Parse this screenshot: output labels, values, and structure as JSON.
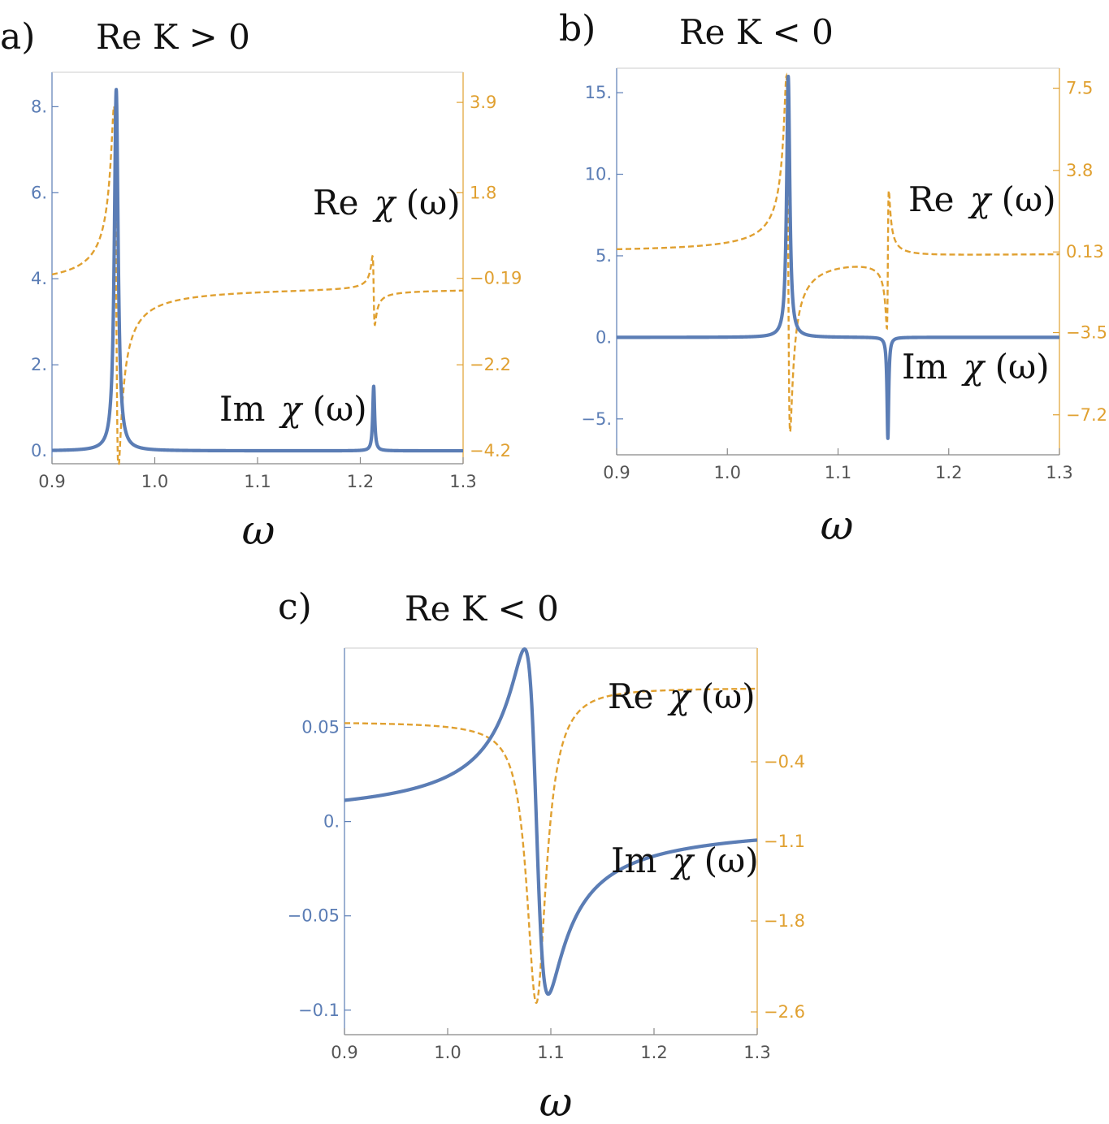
{
  "colors": {
    "im": "#5B7DB5",
    "re": "#E0A030",
    "axis_x": "#888888",
    "text": "#111111"
  },
  "chart_data": [
    {
      "id": "a",
      "type": "line",
      "panel_label": "a)",
      "title": "Re K > 0",
      "xlabel": "ω",
      "xlim": [
        0.9,
        1.3
      ],
      "ylim_left": [
        -0.3,
        8.8
      ],
      "ylim_right": [
        -4.5,
        4.6
      ],
      "x_ticks": [
        "0.9",
        "1.0",
        "1.1",
        "1.2",
        "1.3"
      ],
      "x_tick_values": [
        0.9,
        1.0,
        1.1,
        1.2,
        1.3
      ],
      "y_left_ticks": [
        "0.",
        "2.",
        "4.",
        "6.",
        "8."
      ],
      "y_left_tick_values": [
        0,
        2,
        4,
        6,
        8
      ],
      "y_right_ticks": [
        "-4.2",
        "-2.2",
        "-0.19",
        "1.8",
        "3.9"
      ],
      "y_right_tick_values": [
        -4.2,
        -2.2,
        -0.19,
        1.8,
        3.9
      ],
      "series": [
        {
          "name": "Im χ(ω)",
          "axis": "left",
          "style": "solid",
          "peaks": [
            {
              "x0": 0.9625,
              "gamma": 0.0022,
              "amp": 8.4
            },
            {
              "x0": 1.213,
              "gamma": 0.0011,
              "amp": 1.5
            }
          ],
          "baseline": 0
        },
        {
          "name": "Re χ(ω)",
          "axis": "right",
          "style": "dashed",
          "dispersions": [
            {
              "x0": 0.9625,
              "gamma": 0.0022,
              "amp": 4.2
            },
            {
              "x0": 1.213,
              "gamma": 0.0011,
              "amp": 0.8
            }
          ],
          "offset": -0.4
        }
      ],
      "labels": [
        {
          "pre": "Re",
          "sym": "χ",
          "post": "(ω)"
        },
        {
          "pre": "Im",
          "sym": "χ",
          "post": "(ω)"
        }
      ]
    },
    {
      "id": "b",
      "type": "line",
      "panel_label": "b)",
      "title": "Re K < 0",
      "xlabel": "ω",
      "xlim": [
        0.9,
        1.3
      ],
      "ylim_left": [
        -7.2,
        16.5
      ],
      "ylim_right": [
        -9.0,
        8.4
      ],
      "x_ticks": [
        "0.9",
        "1.0",
        "1.1",
        "1.2",
        "1.3"
      ],
      "x_tick_values": [
        0.9,
        1.0,
        1.1,
        1.2,
        1.3
      ],
      "y_left_ticks": [
        "-5.",
        "0.",
        "5.",
        "10.",
        "15."
      ],
      "y_left_tick_values": [
        -5,
        0,
        5,
        10,
        15
      ],
      "y_right_ticks": [
        "-7.2",
        "-3.5",
        "0.13",
        "3.8",
        "7.5"
      ],
      "y_right_tick_values": [
        -7.2,
        -3.5,
        0.13,
        3.8,
        7.5
      ],
      "series": [
        {
          "name": "Im χ(ω)",
          "axis": "left",
          "style": "solid",
          "peaks": [
            {
              "x0": 1.055,
              "gamma": 0.0017,
              "amp": 16.0
            },
            {
              "x0": 1.145,
              "gamma": 0.0009,
              "amp": -6.2
            }
          ],
          "baseline": 0
        },
        {
          "name": "Re χ(ω)",
          "axis": "right",
          "style": "dashed",
          "dispersions": [
            {
              "x0": 1.055,
              "gamma": 0.0017,
              "amp": 8.0
            },
            {
              "x0": 1.145,
              "gamma": 0.0009,
              "amp": -3.1
            }
          ],
          "offset": 0.1
        }
      ],
      "labels": [
        {
          "pre": "Re",
          "sym": "χ",
          "post": "(ω)"
        },
        {
          "pre": "Im",
          "sym": "χ",
          "post": "(ω)"
        }
      ]
    },
    {
      "id": "c",
      "type": "line",
      "panel_label": "c)",
      "title": "Re K < 0",
      "xlabel": "ω",
      "xlim": [
        0.9,
        1.3
      ],
      "ylim_left": [
        -0.113,
        0.092
      ],
      "ylim_right": [
        -2.8,
        0.6
      ],
      "x_ticks": [
        "0.9",
        "1.0",
        "1.1",
        "1.2",
        "1.3"
      ],
      "x_tick_values": [
        0.9,
        1.0,
        1.1,
        1.2,
        1.3
      ],
      "y_left_ticks": [
        "-0.1",
        "-0.05",
        "0.",
        "0.05"
      ],
      "y_left_tick_values": [
        -0.1,
        -0.05,
        0,
        0.05
      ],
      "y_right_ticks": [
        "-2.6",
        "-1.8",
        "-1.1",
        "-0.4"
      ],
      "y_right_tick_values": [
        -2.6,
        -1.8,
        -1.1,
        -0.4
      ],
      "series": [
        {
          "name": "Im χ(ω)",
          "axis": "left",
          "style": "solid",
          "dispersion_like": {
            "x0": 1.086,
            "gamma": 0.0115,
            "amp": -0.092
          },
          "peak_x": 1.075,
          "peak_y": 0.08,
          "trough_x": 1.096,
          "trough_y": -0.102
        },
        {
          "name": "Re χ(ω)",
          "axis": "right",
          "style": "dashed",
          "lorentz": {
            "x0": 1.086,
            "gamma": 0.0115,
            "amp": -2.62
          },
          "offset": 0.0,
          "min_x": 1.086,
          "min_y": -2.62
        }
      ],
      "labels": [
        {
          "pre": "Re",
          "sym": "χ",
          "post": "(ω)"
        },
        {
          "pre": "Im",
          "sym": "χ",
          "post": "(ω)"
        }
      ]
    }
  ]
}
